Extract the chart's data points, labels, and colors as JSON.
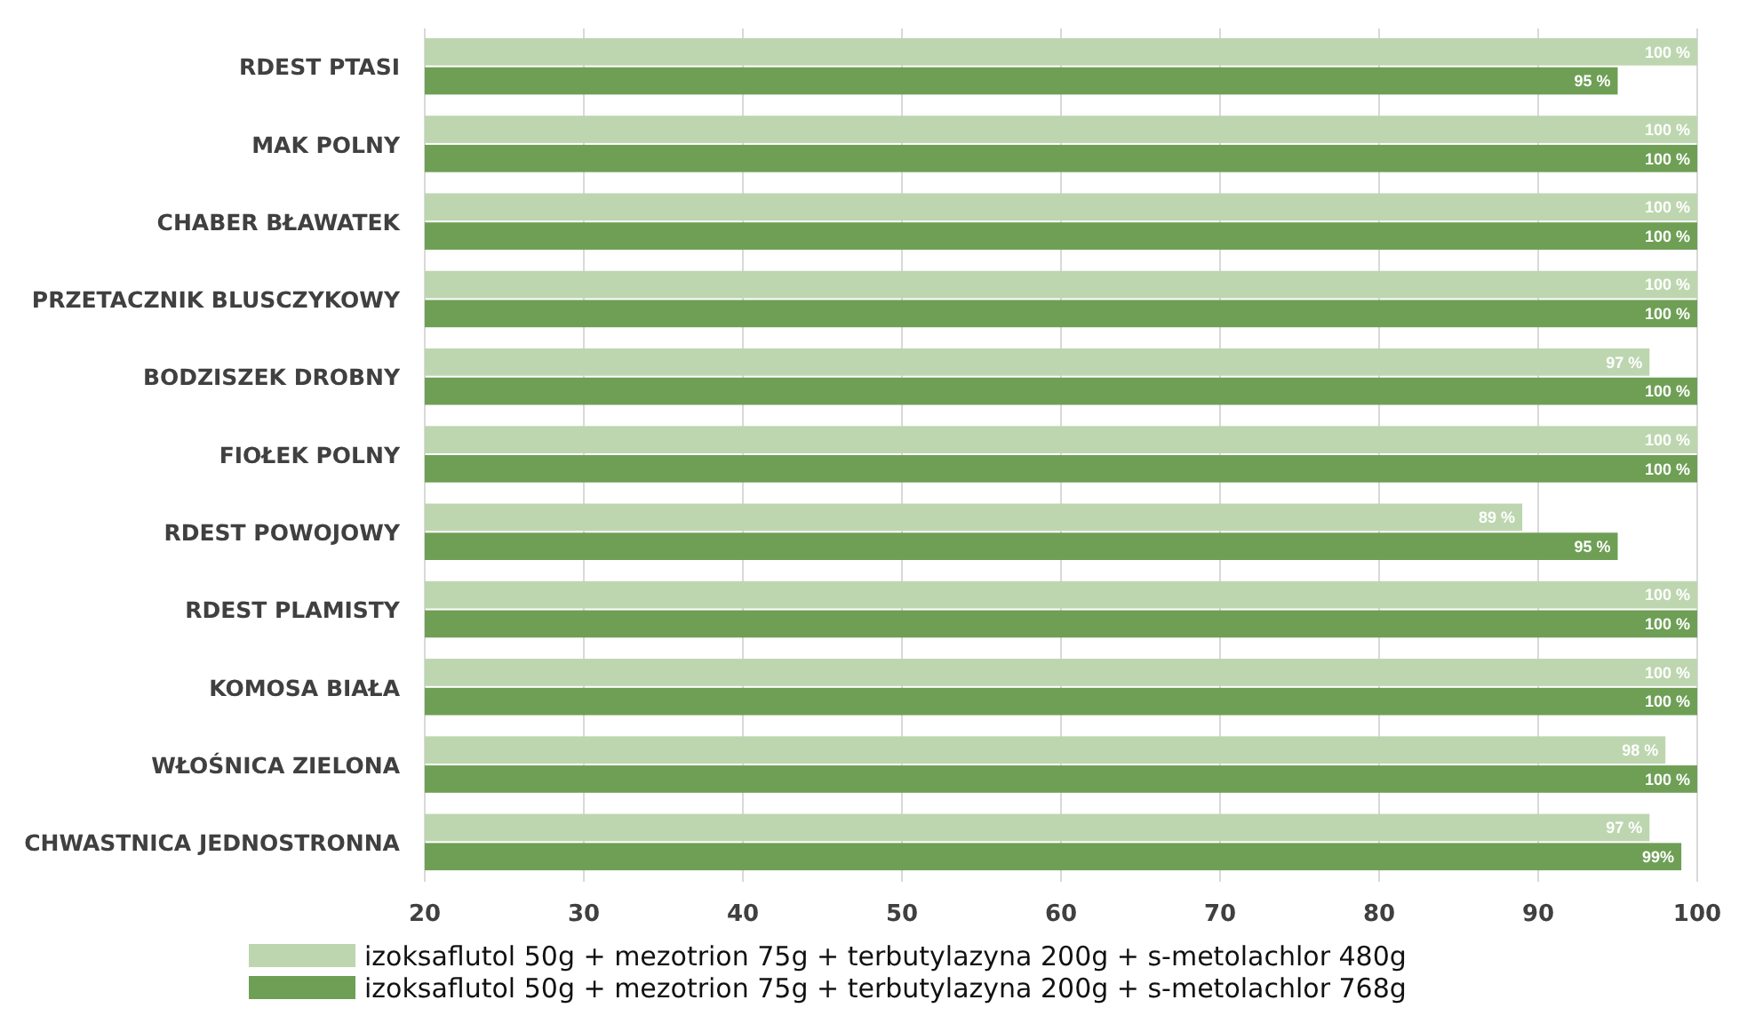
{
  "chart_data": {
    "type": "bar",
    "orientation": "horizontal",
    "categories": [
      "RDEST PTASI",
      "MAK POLNY",
      "CHABER BŁAWATEK",
      "PRZETACZNIK BLUSCZYKOWY",
      "BODZISZEK DROBNY",
      "FIOŁEK POLNY",
      "RDEST POWOJOWY",
      "RDEST PLAMISTY",
      "KOMOSA BIAŁA",
      "WŁOŚNICA ZIELONA",
      "CHWASTNICA JEDNOSTRONNA"
    ],
    "series": [
      {
        "name": "izoksaflutol 50g + mezotrion 75g + terbutylazyna 200g + s-metolachlor 480g",
        "color": "#bdd6af",
        "values": [
          100,
          100,
          100,
          100,
          97,
          100,
          89,
          100,
          100,
          98,
          97
        ],
        "value_labels": [
          "100 %",
          "100 %",
          "100 %",
          "100 %",
          "97 %",
          "100 %",
          "89 %",
          "100 %",
          "100 %",
          "98 %",
          "97 %"
        ]
      },
      {
        "name": "izoksaflutol 50g + mezotrion 75g + terbutylazyna 200g + s-metolachlor 768g",
        "color": "#6e9f55",
        "values": [
          95,
          100,
          100,
          100,
          100,
          100,
          95,
          100,
          100,
          100,
          99
        ],
        "value_labels": [
          "95 %",
          "100 %",
          "100 %",
          "100 %",
          "100 %",
          "100 %",
          "95 %",
          "100 %",
          "100 %",
          "100 %",
          "99%"
        ]
      }
    ],
    "xlim": [
      20,
      100
    ],
    "xticks": [
      20,
      30,
      40,
      50,
      60,
      70,
      80,
      90,
      100
    ],
    "grid": "x",
    "legend": "bottom"
  }
}
